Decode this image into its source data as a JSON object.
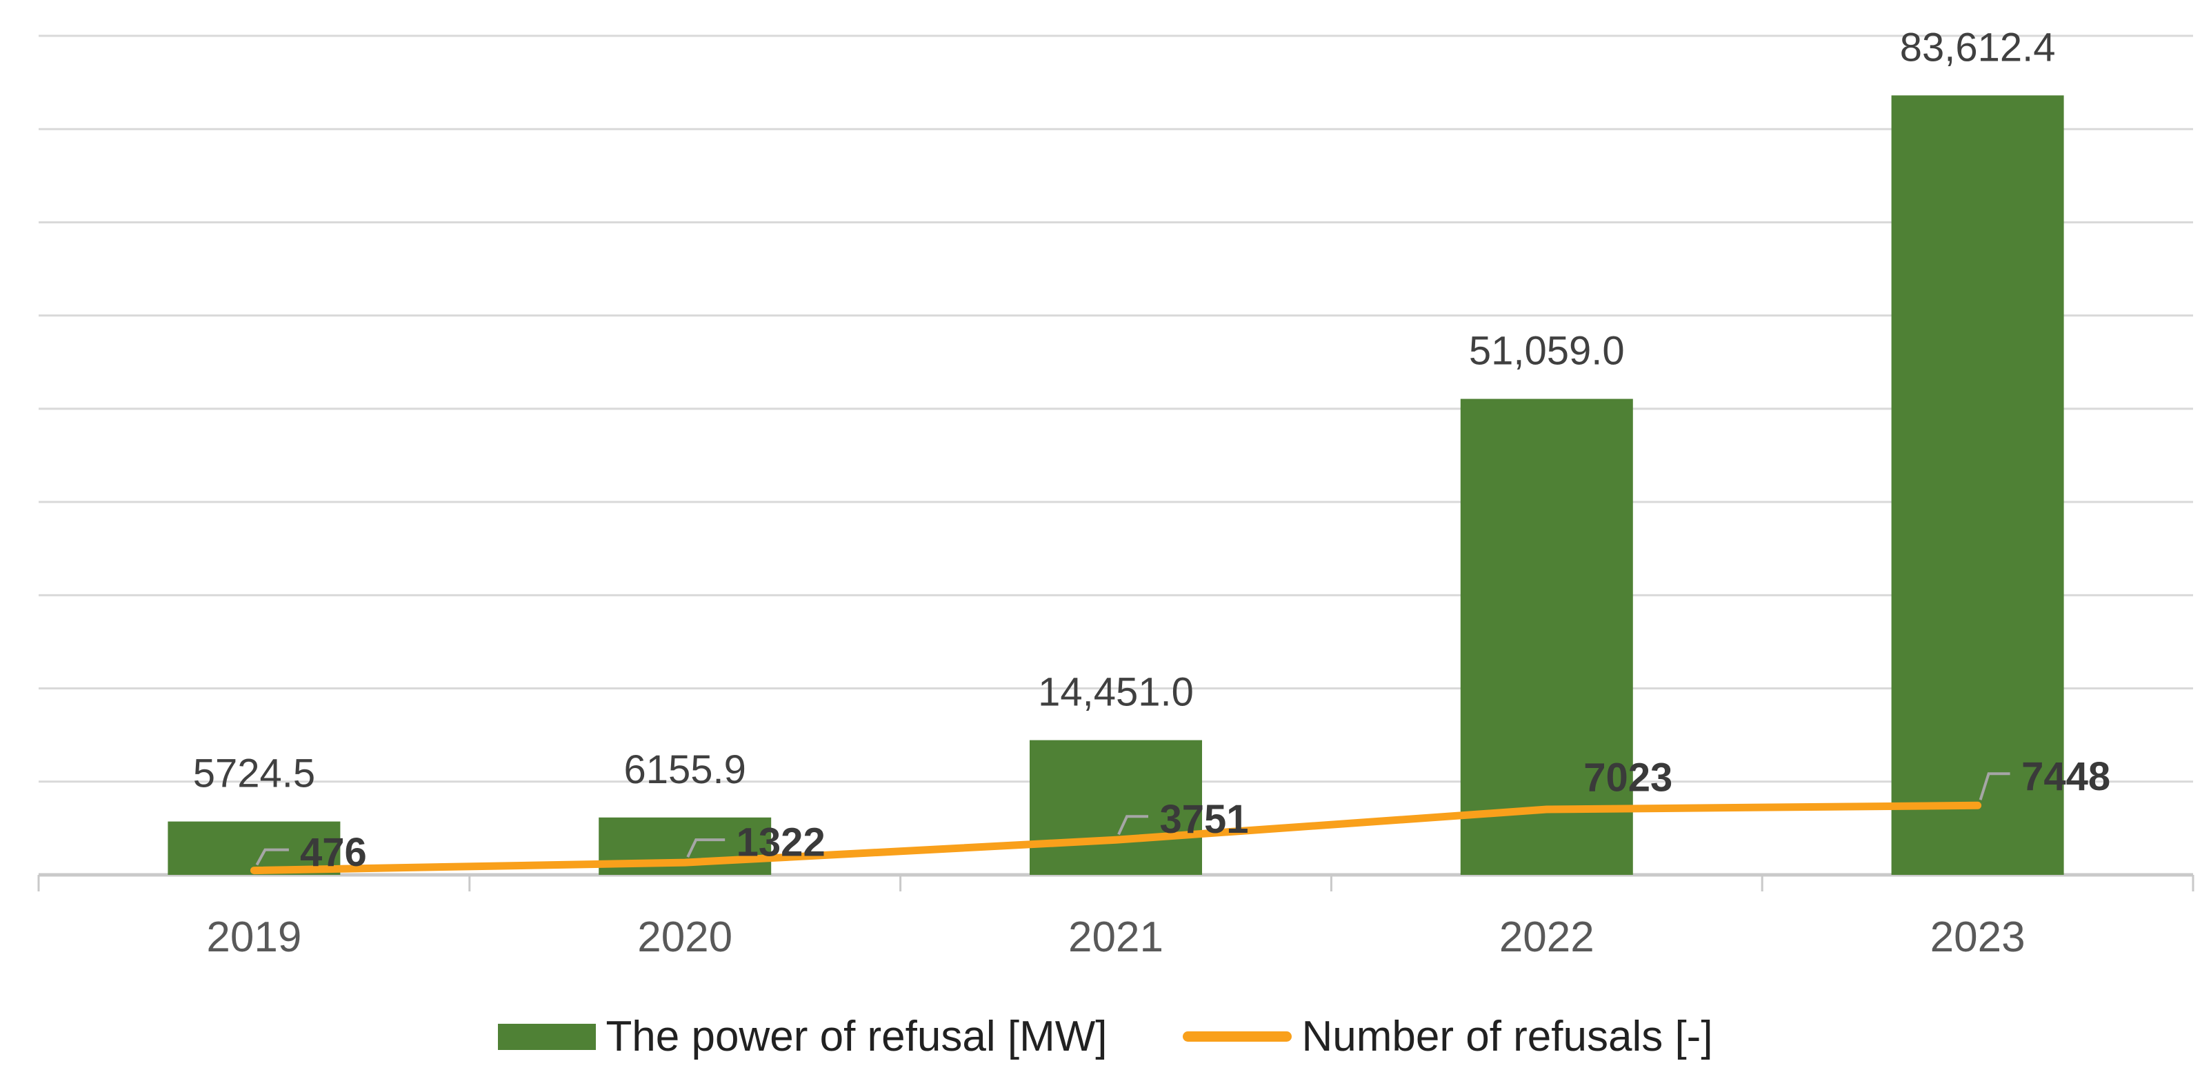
{
  "chart_data": {
    "type": "bar+line",
    "title": "",
    "xlabel": "",
    "ylabel": "",
    "categories": [
      "2019",
      "2020",
      "2021",
      "2022",
      "2023"
    ],
    "series": [
      {
        "name": "The power of refusal [MW]",
        "type": "bar",
        "unit": "MW",
        "values": [
          5724.5,
          6155.9,
          14451.0,
          51059.0,
          83612.4
        ],
        "labels": [
          "5724.5",
          "6155.9",
          "14,451.0",
          "51,059.0",
          "83,612.4"
        ]
      },
      {
        "name": "Number of refusals [-]",
        "type": "line",
        "unit": "-",
        "values": [
          476,
          1322,
          3751,
          7023,
          7448
        ],
        "labels": [
          "476",
          "1322",
          "3751",
          "7023",
          "7448"
        ]
      }
    ],
    "ylim": [
      0,
      90000
    ],
    "gridline_step": 10000,
    "grid": "horizontal",
    "y_axis_labels_visible": false,
    "legend_position": "bottom"
  },
  "legend": {
    "items": [
      {
        "label": "The power of refusal [MW]",
        "swatch": "green-bar"
      },
      {
        "label": "Number of refusals [-]",
        "swatch": "orange-line"
      }
    ]
  },
  "colors": {
    "bar": "#4F8135",
    "line": "#F9A01B",
    "gridline": "#D9D9D9",
    "axis": "#C9C9C9",
    "leader": "#A6A6A6",
    "bar_label": "#404040",
    "line_label": "#3A3A3A",
    "year_label": "#595959",
    "legend_text": "#212121",
    "background": "#FFFFFF"
  }
}
